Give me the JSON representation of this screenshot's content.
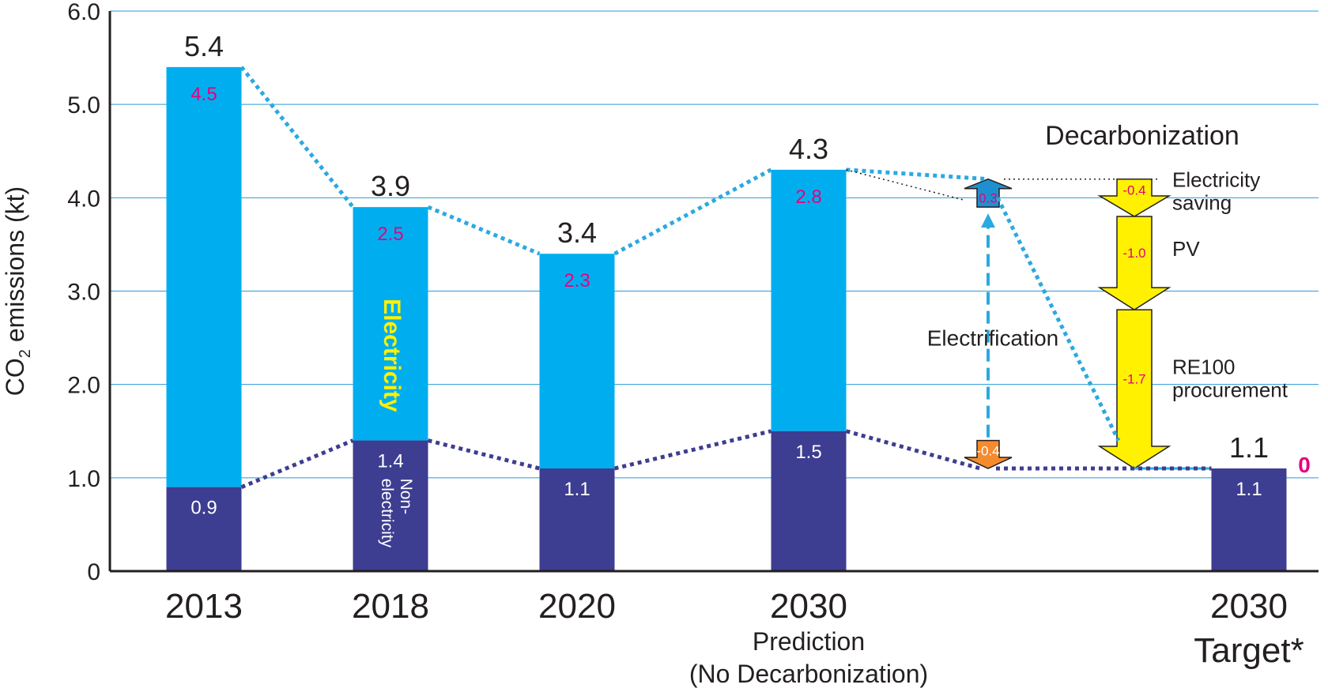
{
  "chart_data": {
    "type": "bar",
    "ylabel_main": "CO",
    "ylabel_sub": "2",
    "ylabel_rest": " emissions (kt)",
    "yticks": [
      "0",
      "1.0",
      "2.0",
      "3.0",
      "4.0",
      "5.0",
      "6.0"
    ],
    "ylim": [
      0,
      6
    ],
    "grid": true,
    "colors": {
      "electricity": "#00AEEF",
      "non_electricity": "#3D3D91",
      "inner_label": "#E6007E",
      "yellow_label": "#FFF100",
      "arrow_yellow": "#FFF100",
      "arrow_blue": "#1E90D0",
      "arrow_orange": "#F68B2D"
    },
    "bars": [
      {
        "category": "2013",
        "sublabel": "",
        "total": 5.4,
        "total_label": "5.4",
        "electricity": 4.5,
        "electricity_label": "4.5",
        "non_electricity": 0.9,
        "non_electricity_label": "0.9"
      },
      {
        "category": "2018",
        "sublabel": "",
        "total": 3.9,
        "total_label": "3.9",
        "electricity": 2.5,
        "electricity_label": "2.5",
        "non_electricity": 1.4,
        "non_electricity_label": "1.4"
      },
      {
        "category": "2020",
        "sublabel": "",
        "total": 3.4,
        "total_label": "3.4",
        "electricity": 2.3,
        "electricity_label": "2.3",
        "non_electricity": 1.1,
        "non_electricity_label": "1.1"
      },
      {
        "category": "2030",
        "sublabel": "Prediction",
        "sublabel2": "(No Decarbonization)",
        "total": 4.3,
        "total_label": "4.3",
        "electricity": 2.8,
        "electricity_label": "2.8",
        "non_electricity": 1.5,
        "non_electricity_label": "1.5"
      },
      {
        "category": "2030",
        "sublabel": "Target*",
        "total": 1.1,
        "total_label": "1.1",
        "electricity": 0,
        "electricity_label": "0",
        "non_electricity": 1.1,
        "non_electricity_label": "1.1"
      }
    ],
    "series_labels": {
      "electricity": "Electricity",
      "non_electricity_1": "Non-",
      "non_electricity_2": "electricity"
    },
    "electrification": {
      "label": "Electrification",
      "up_value": 0.3,
      "up_label": "0.3",
      "down_value": -0.4,
      "down_label": "-0.4"
    },
    "decarbonization": {
      "title": "Decarbonization",
      "steps": [
        {
          "value": -0.4,
          "label": "-0.4",
          "name": "Electricity",
          "name2": "saving"
        },
        {
          "value": -1.0,
          "label": "-1.0",
          "name": "PV",
          "name2": ""
        },
        {
          "value": -1.7,
          "label": "-1.7",
          "name": "RE100",
          "name2": "procurement"
        }
      ]
    }
  }
}
